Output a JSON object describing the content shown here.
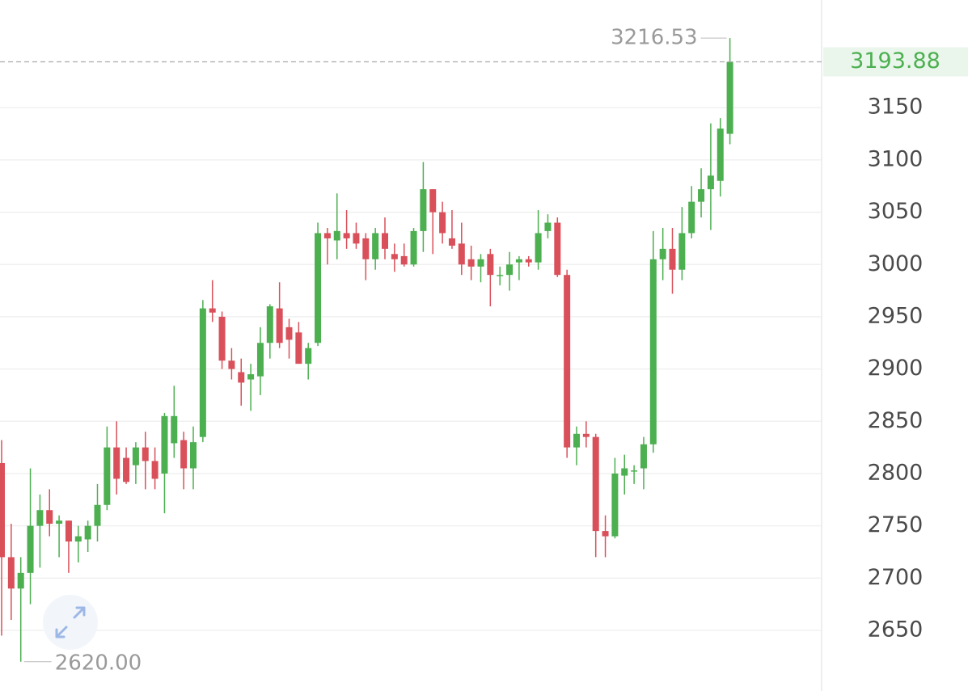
{
  "chart_data": {
    "type": "candlestick",
    "up_color": "#4caf50",
    "down_color": "#d9505a",
    "grid": true,
    "ylim": [
      2592,
      3253
    ],
    "yticks": [
      2650,
      2700,
      2750,
      2800,
      2850,
      2900,
      2950,
      3000,
      3050,
      3100,
      3150
    ],
    "last_price": 3193.88,
    "max_marker": 3216.53,
    "min_marker": {
      "value": 2620,
      "label": "2620.00"
    },
    "open": [
      2810,
      2720,
      2690,
      2705,
      2750,
      2765,
      2752,
      2755,
      2735,
      2737,
      2750,
      2770,
      2825,
      2815,
      2808,
      2825,
      2812,
      2800,
      2829,
      2832,
      2805,
      2835,
      2958,
      2950,
      2908,
      2897,
      2890,
      2893,
      2925,
      2958,
      2940,
      2935,
      2905,
      2925,
      3030,
      3023,
      3030,
      3030,
      3025,
      3005,
      3030,
      3010,
      3008,
      3000,
      3032,
      3072,
      3050,
      3025,
      3020,
      3005,
      2998,
      3010,
      2990,
      2990,
      3002,
      3005,
      3002,
      3032,
      3040,
      2990,
      2825,
      2838,
      2835,
      2745,
      2740,
      2798,
      2802,
      2805,
      2828,
      3005,
      3015,
      2995,
      3030,
      3060,
      3072,
      3080,
      3125
    ],
    "high": [
      2832,
      2752,
      2720,
      2805,
      2780,
      2785,
      2760,
      2755,
      2750,
      2755,
      2790,
      2845,
      2850,
      2825,
      2830,
      2840,
      2825,
      2858,
      2884,
      2840,
      2845,
      2966,
      2985,
      2955,
      2920,
      2910,
      2905,
      2940,
      2962,
      2983,
      2948,
      2945,
      2925,
      3040,
      3035,
      3068,
      3052,
      3040,
      3030,
      3035,
      3045,
      3020,
      3020,
      3035,
      3098,
      3072,
      3060,
      3052,
      3040,
      3018,
      3010,
      3015,
      2998,
      3012,
      3008,
      3008,
      3052,
      3048,
      3045,
      2995,
      2845,
      2850,
      2838,
      2760,
      2815,
      2818,
      2808,
      2835,
      3032,
      3035,
      3035,
      3055,
      3075,
      3092,
      3135,
      3140,
      3216.53
    ],
    "low": [
      2645,
      2660,
      2620,
      2675,
      2710,
      2740,
      2720,
      2705,
      2715,
      2725,
      2735,
      2765,
      2780,
      2790,
      2790,
      2785,
      2785,
      2762,
      2815,
      2785,
      2785,
      2830,
      2945,
      2900,
      2890,
      2865,
      2860,
      2875,
      2910,
      2920,
      2910,
      2905,
      2890,
      2922,
      3000,
      3005,
      3015,
      3015,
      2985,
      2995,
      3005,
      2993,
      2998,
      2998,
      3012,
      3010,
      3020,
      3015,
      2990,
      2985,
      2983,
      2960,
      2980,
      2975,
      2985,
      2998,
      2995,
      3025,
      2988,
      2815,
      2808,
      2825,
      2720,
      2720,
      2738,
      2780,
      2790,
      2785,
      2820,
      2985,
      2972,
      2985,
      3025,
      3045,
      3033,
      3065,
      3115
    ],
    "close": [
      2720,
      2690,
      2705,
      2750,
      2765,
      2752,
      2755,
      2735,
      2740,
      2750,
      2770,
      2825,
      2795,
      2792,
      2825,
      2812,
      2795,
      2855,
      2855,
      2805,
      2830,
      2958,
      2954,
      2908,
      2900,
      2887,
      2895,
      2925,
      2960,
      2925,
      2928,
      2905,
      2920,
      3030,
      3025,
      3032,
      3025,
      3020,
      3005,
      3030,
      3015,
      3005,
      3000,
      3032,
      3072,
      3050,
      3030,
      3018,
      3000,
      2998,
      3005,
      2990,
      2990,
      3000,
      3005,
      3002,
      3030,
      3040,
      2990,
      2825,
      2838,
      2835,
      2745,
      2740,
      2800,
      2805,
      2803,
      2828,
      3005,
      3015,
      2995,
      3030,
      3060,
      3072,
      3085,
      3130,
      3193.88
    ]
  }
}
